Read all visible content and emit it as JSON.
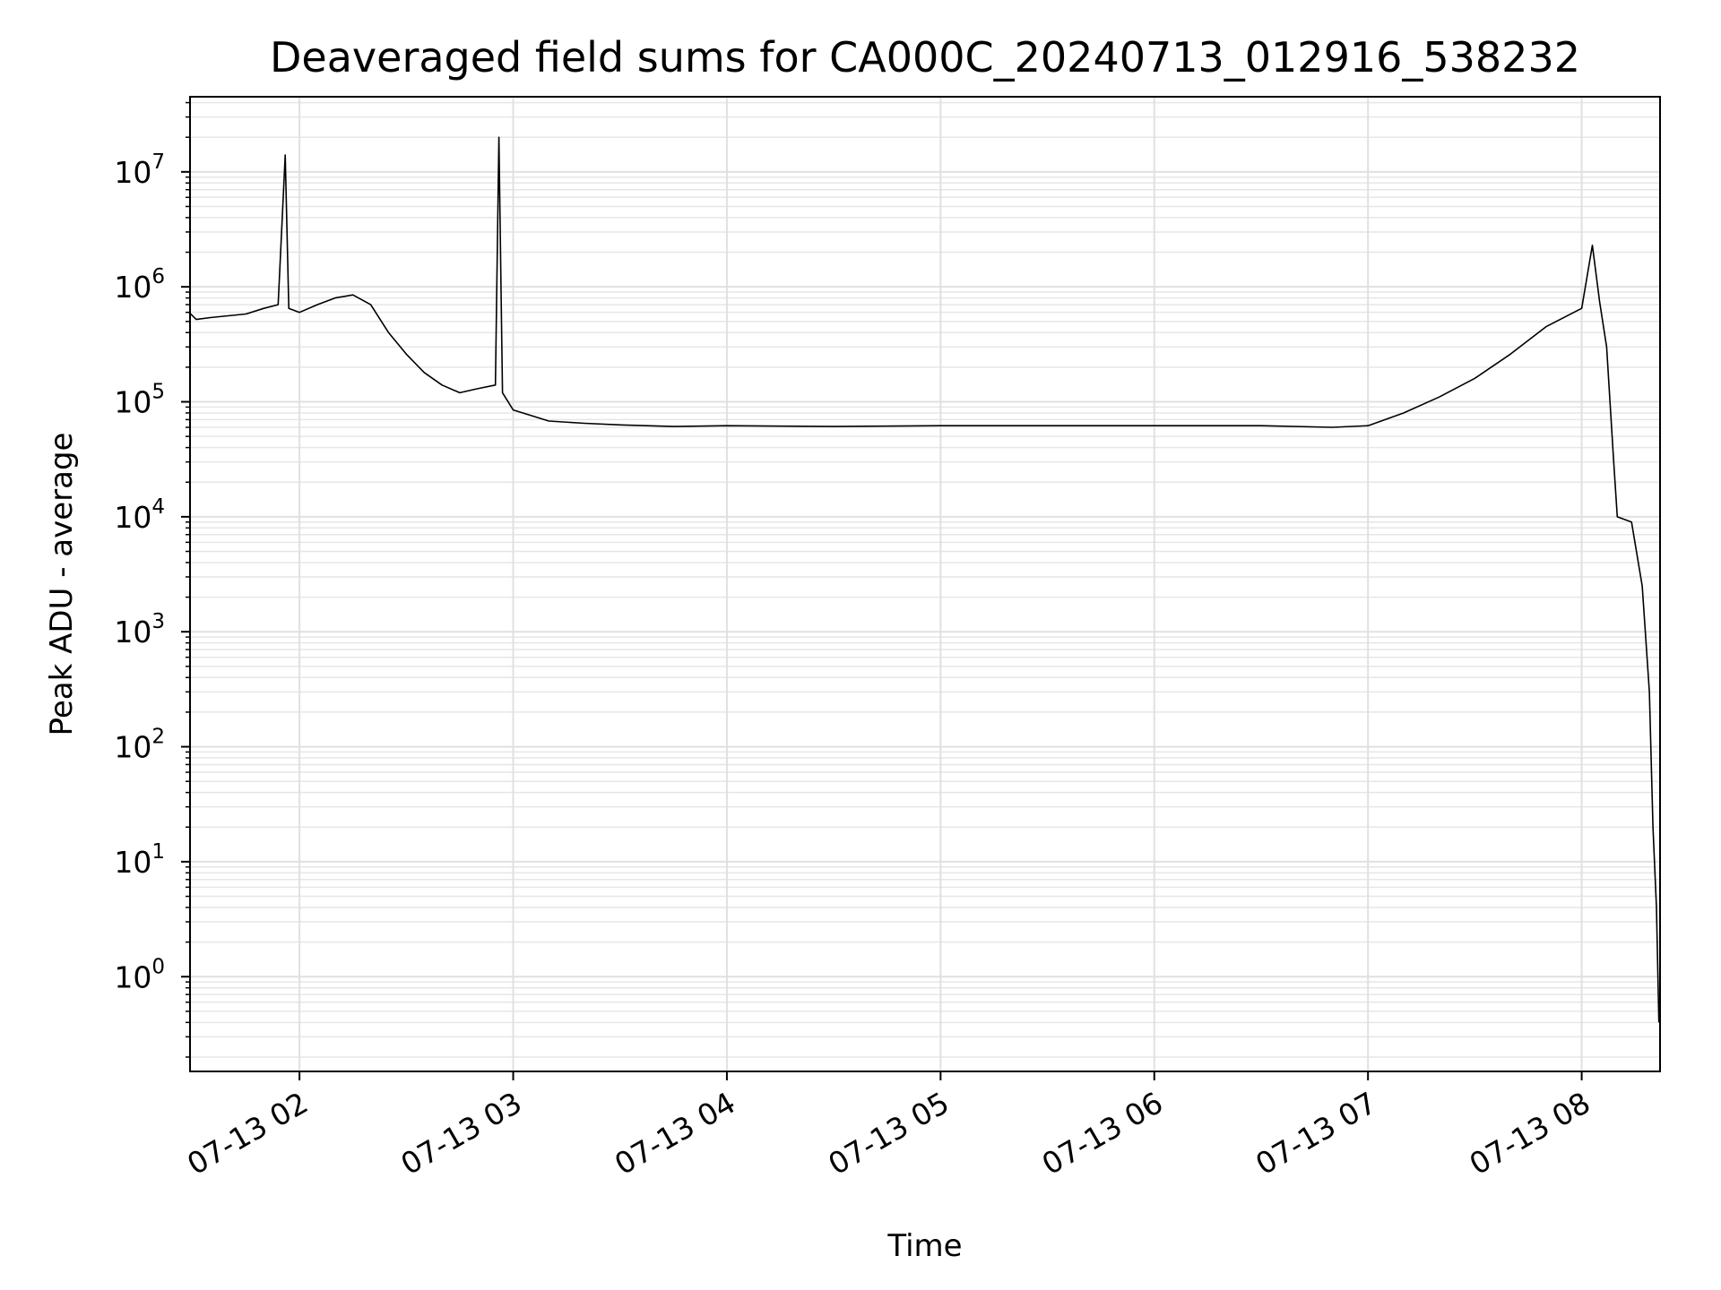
{
  "chart_data": {
    "type": "line",
    "title": "Deaveraged field sums for CA000C_20240713_012916_538232",
    "xlabel": "Time",
    "ylabel": "Peak ADU - average",
    "yscale": "log",
    "xlim": [
      "2024-07-13 01:29:16",
      "2024-07-13 08:22:00"
    ],
    "ylim": [
      0.15,
      45000000
    ],
    "grid": true,
    "x_ticks": [
      {
        "t": "2024-07-13 02:00",
        "label": "07-13 02"
      },
      {
        "t": "2024-07-13 03:00",
        "label": "07-13 03"
      },
      {
        "t": "2024-07-13 04:00",
        "label": "07-13 04"
      },
      {
        "t": "2024-07-13 05:00",
        "label": "07-13 05"
      },
      {
        "t": "2024-07-13 06:00",
        "label": "07-13 06"
      },
      {
        "t": "2024-07-13 07:00",
        "label": "07-13 07"
      },
      {
        "t": "2024-07-13 08:00",
        "label": "07-13 08"
      }
    ],
    "y_ticks": [
      {
        "value": 1,
        "base": "10",
        "exp": "0"
      },
      {
        "value": 10,
        "base": "10",
        "exp": "1"
      },
      {
        "value": 100,
        "base": "10",
        "exp": "2"
      },
      {
        "value": 1000,
        "base": "10",
        "exp": "3"
      },
      {
        "value": 10000,
        "base": "10",
        "exp": "4"
      },
      {
        "value": 100000,
        "base": "10",
        "exp": "5"
      },
      {
        "value": 1000000,
        "base": "10",
        "exp": "6"
      },
      {
        "value": 10000000,
        "base": "10",
        "exp": "7"
      }
    ],
    "series": [
      {
        "color": "#000000",
        "points": [
          [
            "2024-07-13 01:29",
            600000
          ],
          [
            "2024-07-13 01:31",
            520000
          ],
          [
            "2024-07-13 01:35",
            540000
          ],
          [
            "2024-07-13 01:40",
            560000
          ],
          [
            "2024-07-13 01:45",
            580000
          ],
          [
            "2024-07-13 01:50",
            650000
          ],
          [
            "2024-07-13 01:54",
            700000
          ],
          [
            "2024-07-13 01:56",
            14000000
          ],
          [
            "2024-07-13 01:57",
            650000
          ],
          [
            "2024-07-13 02:00",
            600000
          ],
          [
            "2024-07-13 02:05",
            700000
          ],
          [
            "2024-07-13 02:10",
            800000
          ],
          [
            "2024-07-13 02:15",
            850000
          ],
          [
            "2024-07-13 02:20",
            700000
          ],
          [
            "2024-07-13 02:25",
            400000
          ],
          [
            "2024-07-13 02:30",
            260000
          ],
          [
            "2024-07-13 02:35",
            180000
          ],
          [
            "2024-07-13 02:40",
            140000
          ],
          [
            "2024-07-13 02:45",
            120000
          ],
          [
            "2024-07-13 02:50",
            130000
          ],
          [
            "2024-07-13 02:55",
            140000
          ],
          [
            "2024-07-13 02:56",
            20000000
          ],
          [
            "2024-07-13 02:57",
            120000
          ],
          [
            "2024-07-13 03:00",
            85000
          ],
          [
            "2024-07-13 03:10",
            68000
          ],
          [
            "2024-07-13 03:20",
            65000
          ],
          [
            "2024-07-13 03:30",
            63000
          ],
          [
            "2024-07-13 03:45",
            61000
          ],
          [
            "2024-07-13 04:00",
            62000
          ],
          [
            "2024-07-13 04:30",
            61000
          ],
          [
            "2024-07-13 05:00",
            62000
          ],
          [
            "2024-07-13 05:30",
            62000
          ],
          [
            "2024-07-13 06:00",
            62000
          ],
          [
            "2024-07-13 06:30",
            62000
          ],
          [
            "2024-07-13 06:50",
            60000
          ],
          [
            "2024-07-13 07:00",
            62000
          ],
          [
            "2024-07-13 07:10",
            80000
          ],
          [
            "2024-07-13 07:20",
            110000
          ],
          [
            "2024-07-13 07:30",
            160000
          ],
          [
            "2024-07-13 07:40",
            260000
          ],
          [
            "2024-07-13 07:50",
            450000
          ],
          [
            "2024-07-13 08:00",
            650000
          ],
          [
            "2024-07-13 08:03",
            2300000
          ],
          [
            "2024-07-13 08:05",
            750000
          ],
          [
            "2024-07-13 08:07",
            300000
          ],
          [
            "2024-07-13 08:09",
            30000
          ],
          [
            "2024-07-13 08:10",
            10000
          ],
          [
            "2024-07-13 08:14",
            9000
          ],
          [
            "2024-07-13 08:17",
            2500
          ],
          [
            "2024-07-13 08:19",
            300
          ],
          [
            "2024-07-13 08:20",
            20
          ],
          [
            "2024-07-13 08:21",
            4
          ],
          [
            "2024-07-13 08:21:40",
            0.4
          ]
        ]
      }
    ]
  }
}
